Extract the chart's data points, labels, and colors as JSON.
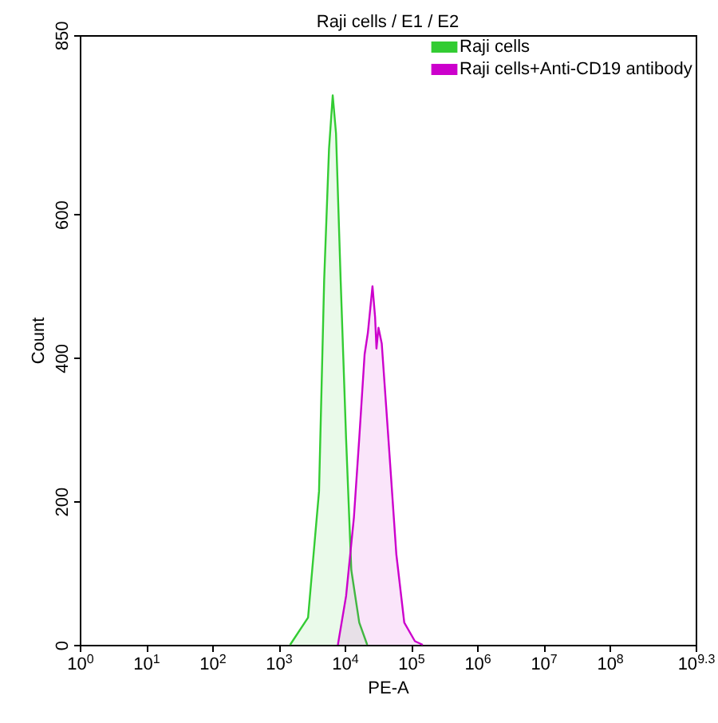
{
  "chart_data": {
    "type": "area",
    "title": "Raji cells / E1 / E2",
    "xlabel": "PE-A",
    "ylabel": "Count",
    "log": "x",
    "xlim": [
      1,
      1995262315
    ],
    "ylim": [
      0,
      850
    ],
    "yticks": [
      0,
      200,
      400,
      600,
      850
    ],
    "xticks": [
      {
        "value": 1,
        "label": "10$^{0}$"
      },
      {
        "value": 10,
        "label": "10$^{1}$"
      },
      {
        "value": 100,
        "label": "10$^{2}$"
      },
      {
        "value": 1000,
        "label": "10$^{3}$"
      },
      {
        "value": 10000,
        "label": "10$^{4}$"
      },
      {
        "value": 100000,
        "label": "10$^{5}$"
      },
      {
        "value": 1000000,
        "label": "10$^{6}$"
      },
      {
        "value": 10000000,
        "label": "10$^{7}$"
      },
      {
        "value": 100000000,
        "label": "10$^{8}$"
      },
      {
        "value": 1995262315,
        "label": "10$^{9.3}$"
      }
    ],
    "grid": false,
    "legend": "top right",
    "series": [
      {
        "name": "Raji cells",
        "color": "#33cc33",
        "x": [
          1500,
          2800,
          4100,
          4900,
          5800,
          6600,
          7400,
          8700,
          10500,
          12600,
          16600,
          21900
        ],
        "values": [
          0,
          38,
          214,
          508,
          691,
          766,
          713,
          508,
          288,
          104,
          31,
          0
        ]
      },
      {
        "name": "Raji cells+Anti-CD19 antibody",
        "color": "#cc00cc",
        "x": [
          7900,
          10500,
          13800,
          16600,
          20000,
          22400,
          26300,
          28800,
          30200,
          32400,
          36300,
          45700,
          60300,
          79400,
          115000,
          151000
        ],
        "values": [
          0,
          68,
          178,
          288,
          405,
          435,
          500,
          457,
          413,
          442,
          420,
          288,
          126,
          31,
          5,
          0
        ]
      }
    ]
  }
}
